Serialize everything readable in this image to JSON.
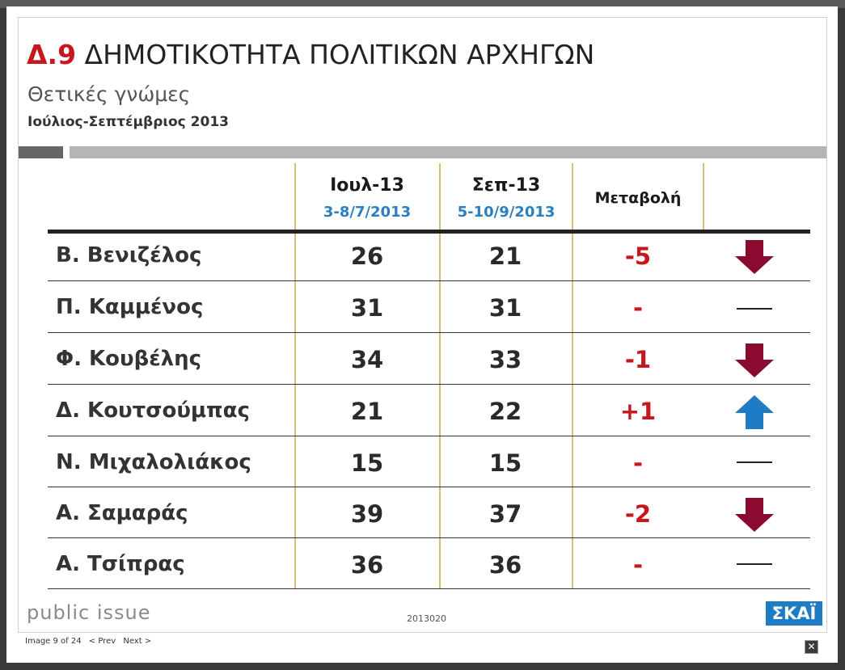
{
  "slide": {
    "title_code": "Δ.9",
    "title_text": "ΔΗΜΟΤΙΚΟΤΗΤΑ ΠΟΛΙΤΙΚΩΝ ΑΡΧΗΓΩΝ",
    "subtitle": "Θετικές γνώμες",
    "period": "Ιούλιος-Σεπτέμβριος 2013",
    "columns": [
      {
        "label": "Ιουλ-13",
        "date": "3-8/7/2013"
      },
      {
        "label": "Σεπ-13",
        "date": "5-10/9/2013"
      },
      {
        "label": "Μεταβολή"
      }
    ],
    "rows": [
      {
        "name": "Β. Βενιζέλος",
        "jul": "26",
        "sep": "21",
        "change": "-5",
        "trend": "down-arrow-icon"
      },
      {
        "name": "Π. Καμμένος",
        "jul": "31",
        "sep": "31",
        "change": "-",
        "trend": "no-change-dash-icon"
      },
      {
        "name": "Φ. Κουβέλης",
        "jul": "34",
        "sep": "33",
        "change": "-1",
        "trend": "down-arrow-icon"
      },
      {
        "name": "Δ. Κουτσούμπας",
        "jul": "21",
        "sep": "22",
        "change": "+1",
        "trend": "up-arrow-icon"
      },
      {
        "name": "Ν. Μιχαλολιάκος",
        "jul": "15",
        "sep": "15",
        "change": "-",
        "trend": "no-change-dash-icon"
      },
      {
        "name": "Α. Σαμαράς",
        "jul": "39",
        "sep": "37",
        "change": "-2",
        "trend": "down-arrow-icon"
      },
      {
        "name": "Α. Τσίπρας",
        "jul": "36",
        "sep": "36",
        "change": "-",
        "trend": "no-change-dash-icon"
      }
    ],
    "footer": {
      "brand": "public issue",
      "code": "2013020",
      "logo": "ΣΚΑΪ"
    },
    "colors": {
      "title_red": "#c8161d",
      "date_blue": "#2a7fc0",
      "down_arrow": "#8b0a2f",
      "up_arrow": "#1d7cc4",
      "divider_gold": "#d9bf73"
    }
  },
  "lightbox": {
    "counter": "Image 9 of 24",
    "prev_label": "< Prev",
    "next_label": "Next >",
    "close_icon": "close-icon"
  }
}
